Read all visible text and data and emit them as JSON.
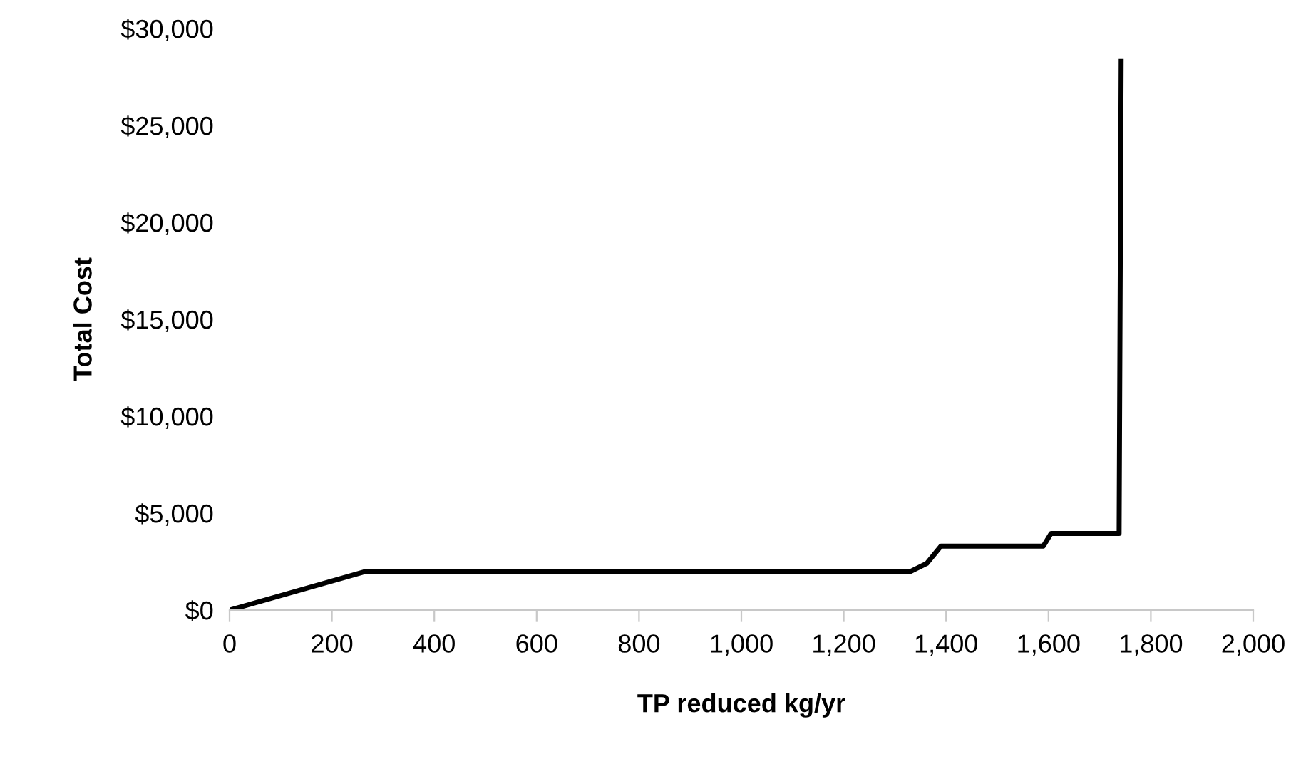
{
  "chart_data": {
    "type": "line",
    "xlabel": "TP reduced kg/yr",
    "ylabel": "Total Cost",
    "series": [
      {
        "color": "#000000",
        "x": [
          0,
          267,
          1331,
          1362,
          1390,
          1590,
          1605,
          1738,
          1742
        ],
        "values": [
          0,
          2000,
          2000,
          2400,
          3300,
          3300,
          3950,
          3950,
          28300
        ]
      }
    ],
    "xlim": [
      0,
      2000
    ],
    "xticks": [
      {
        "value": 0,
        "label": "0"
      },
      {
        "value": 200,
        "label": "200"
      },
      {
        "value": 400,
        "label": "400"
      },
      {
        "value": 600,
        "label": "600"
      },
      {
        "value": 800,
        "label": "800"
      },
      {
        "value": 1000,
        "label": "1,000"
      },
      {
        "value": 1200,
        "label": "1,200"
      },
      {
        "value": 1400,
        "label": "1,400"
      },
      {
        "value": 1600,
        "label": "1,600"
      },
      {
        "value": 1800,
        "label": "1,800"
      },
      {
        "value": 2000,
        "label": "2,000"
      }
    ],
    "ylim": [
      0,
      30000
    ],
    "yticks": [
      {
        "value": 0,
        "label": "$0"
      },
      {
        "value": 5000,
        "label": "$5,000"
      },
      {
        "value": 10000,
        "label": "$10,000"
      },
      {
        "value": 15000,
        "label": "$15,000"
      },
      {
        "value": 20000,
        "label": "$20,000"
      },
      {
        "value": 25000,
        "label": "$25,000"
      },
      {
        "value": 30000,
        "label": "$30,000"
      }
    ],
    "grid": false,
    "marker": "none",
    "line_style": "solid"
  }
}
